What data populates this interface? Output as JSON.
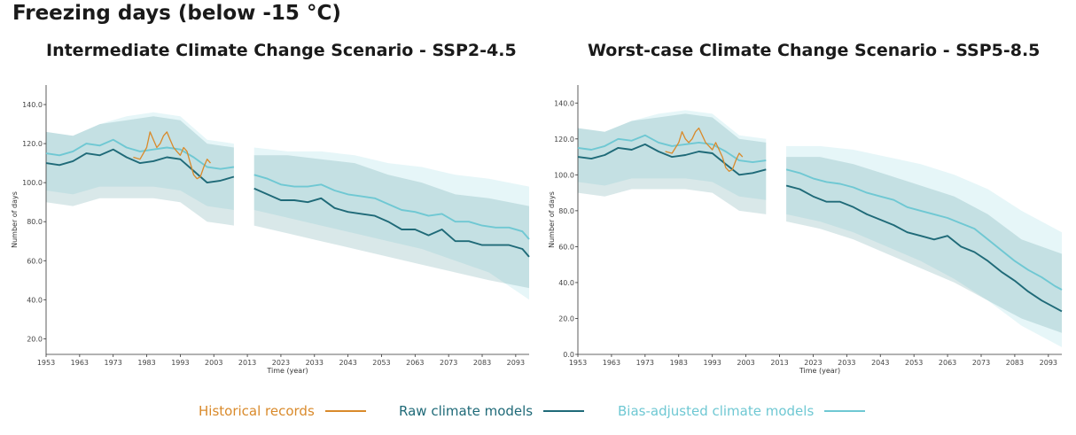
{
  "title": "Freezing days (below -15 °C)",
  "colors": {
    "historical": "#d98a2b",
    "raw": "#1f6a78",
    "bias": "#6fc8d3",
    "raw_band": "#2f7f86",
    "bias_band": "#8fd8e0"
  },
  "legend": {
    "historical": "Historical records",
    "raw": "Raw climate models",
    "bias": "Bias-adjusted climate models"
  },
  "chart_data": [
    {
      "type": "line",
      "title": "Intermediate Climate Change Scenario - SSP2-4.5",
      "xlabel": "Time (year)",
      "ylabel": "Number of days",
      "xlim": [
        1953,
        2097
      ],
      "ylim": [
        12,
        150
      ],
      "xticks": [
        "1953",
        "1963",
        "1973",
        "1983",
        "1993",
        "2003",
        "2013",
        "2023",
        "2033",
        "2043",
        "2053",
        "2063",
        "2073",
        "2083",
        "2093"
      ],
      "yticks": [
        "20.0",
        "40.0",
        "60.0",
        "80.0",
        "100.0",
        "120.0",
        "140.0"
      ],
      "series": [
        {
          "name": "Historical records",
          "segments": [
            {
              "x": [
                1979,
                1981,
                1983,
                1984,
                1985,
                1986,
                1987,
                1988,
                1989,
                1990,
                1991,
                1992,
                1993,
                1994,
                1995,
                1996,
                1997,
                1998,
                1999,
                2000,
                2001,
                2002
              ],
              "y": [
                113,
                112,
                118,
                126,
                122,
                118,
                120,
                124,
                126,
                122,
                118,
                116,
                114,
                118,
                116,
                110,
                104,
                102,
                103,
                108,
                112,
                110
              ]
            }
          ]
        },
        {
          "name": "Raw climate models",
          "segments": [
            {
              "x": [
                1953,
                1957,
                1961,
                1965,
                1969,
                1973,
                1977,
                1981,
                1985,
                1989,
                1993,
                1997,
                2001,
                2005,
                2009
              ],
              "y": [
                110,
                109,
                111,
                115,
                114,
                117,
                113,
                110,
                111,
                113,
                112,
                106,
                100,
                101,
                103
              ]
            },
            {
              "x": [
                2015,
                2019,
                2023,
                2027,
                2031,
                2035,
                2039,
                2043,
                2047,
                2051,
                2055,
                2059,
                2063,
                2067,
                2071,
                2075,
                2079,
                2083,
                2087,
                2091,
                2095,
                2097
              ],
              "y": [
                97,
                94,
                91,
                91,
                90,
                92,
                87,
                85,
                84,
                83,
                80,
                76,
                76,
                73,
                76,
                70,
                70,
                68,
                68,
                68,
                66,
                62
              ]
            }
          ]
        },
        {
          "name": "Bias-adjusted climate models",
          "segments": [
            {
              "x": [
                1953,
                1957,
                1961,
                1965,
                1969,
                1973,
                1977,
                1981,
                1985,
                1989,
                1993,
                1997,
                2001,
                2005,
                2009
              ],
              "y": [
                115,
                114,
                116,
                120,
                119,
                122,
                118,
                116,
                117,
                118,
                117,
                113,
                108,
                107,
                108
              ]
            },
            {
              "x": [
                2015,
                2019,
                2023,
                2027,
                2031,
                2035,
                2039,
                2043,
                2047,
                2051,
                2055,
                2059,
                2063,
                2067,
                2071,
                2075,
                2079,
                2083,
                2087,
                2091,
                2095,
                2097
              ],
              "y": [
                104,
                102,
                99,
                98,
                98,
                99,
                96,
                94,
                93,
                92,
                89,
                86,
                85,
                83,
                84,
                80,
                80,
                78,
                77,
                77,
                75,
                71
              ]
            }
          ]
        }
      ],
      "bands": [
        {
          "name": "Raw climate models range",
          "segments": [
            {
              "x": [
                1953,
                1961,
                1969,
                1977,
                1985,
                1993,
                2001,
                2009
              ],
              "low": [
                90,
                88,
                92,
                92,
                92,
                90,
                80,
                78
              ],
              "high": [
                126,
                124,
                130,
                132,
                134,
                132,
                120,
                118
              ]
            },
            {
              "x": [
                2015,
                2025,
                2035,
                2045,
                2055,
                2065,
                2075,
                2085,
                2097
              ],
              "low": [
                78,
                74,
                70,
                66,
                62,
                58,
                54,
                50,
                46
              ],
              "high": [
                114,
                114,
                112,
                110,
                104,
                100,
                94,
                92,
                88
              ]
            }
          ]
        },
        {
          "name": "Bias-adjusted climate models range",
          "segments": [
            {
              "x": [
                1953,
                1961,
                1969,
                1977,
                1985,
                1993,
                2001,
                2009
              ],
              "low": [
                96,
                94,
                98,
                98,
                98,
                96,
                88,
                86
              ],
              "high": [
                126,
                124,
                130,
                134,
                136,
                134,
                122,
                120
              ]
            },
            {
              "x": [
                2015,
                2025,
                2035,
                2045,
                2055,
                2065,
                2075,
                2085,
                2097
              ],
              "low": [
                86,
                82,
                78,
                74,
                70,
                66,
                60,
                54,
                40
              ],
              "high": [
                118,
                116,
                116,
                114,
                110,
                108,
                104,
                102,
                98
              ]
            }
          ]
        }
      ]
    },
    {
      "type": "line",
      "title": "Worst-case Climate Change Scenario - SSP5-8.5",
      "xlabel": "Time (year)",
      "ylabel": "Number of days",
      "xlim": [
        1953,
        2097
      ],
      "ylim": [
        0,
        150
      ],
      "xticks": [
        "1953",
        "1963",
        "1973",
        "1983",
        "1993",
        "2003",
        "2013",
        "2023",
        "2033",
        "2043",
        "2053",
        "2063",
        "2073",
        "2083",
        "2093"
      ],
      "yticks": [
        "0.0",
        "20.0",
        "40.0",
        "60.0",
        "80.0",
        "100.0",
        "120.0",
        "140.0"
      ],
      "series": [
        {
          "name": "Historical records",
          "segments": [
            {
              "x": [
                1979,
                1981,
                1983,
                1984,
                1985,
                1986,
                1987,
                1988,
                1989,
                1990,
                1991,
                1992,
                1993,
                1994,
                1995,
                1996,
                1997,
                1998,
                1999,
                2000,
                2001,
                2002
              ],
              "y": [
                113,
                112,
                118,
                124,
                120,
                118,
                120,
                124,
                126,
                122,
                118,
                116,
                114,
                118,
                114,
                110,
                104,
                102,
                103,
                108,
                112,
                110
              ]
            }
          ]
        },
        {
          "name": "Raw climate models",
          "segments": [
            {
              "x": [
                1953,
                1957,
                1961,
                1965,
                1969,
                1973,
                1977,
                1981,
                1985,
                1989,
                1993,
                1997,
                2001,
                2005,
                2009
              ],
              "y": [
                110,
                109,
                111,
                115,
                114,
                117,
                113,
                110,
                111,
                113,
                112,
                106,
                100,
                101,
                103
              ]
            },
            {
              "x": [
                2015,
                2019,
                2023,
                2027,
                2031,
                2035,
                2039,
                2043,
                2047,
                2051,
                2055,
                2059,
                2063,
                2067,
                2071,
                2075,
                2079,
                2083,
                2087,
                2091,
                2095,
                2097
              ],
              "y": [
                94,
                92,
                88,
                85,
                85,
                82,
                78,
                75,
                72,
                68,
                66,
                64,
                66,
                60,
                57,
                52,
                46,
                41,
                35,
                30,
                26,
                24
              ]
            }
          ]
        },
        {
          "name": "Bias-adjusted climate models",
          "segments": [
            {
              "x": [
                1953,
                1957,
                1961,
                1965,
                1969,
                1973,
                1977,
                1981,
                1985,
                1989,
                1993,
                1997,
                2001,
                2005,
                2009
              ],
              "y": [
                115,
                114,
                116,
                120,
                119,
                122,
                118,
                116,
                117,
                118,
                117,
                113,
                108,
                107,
                108
              ]
            },
            {
              "x": [
                2015,
                2019,
                2023,
                2027,
                2031,
                2035,
                2039,
                2043,
                2047,
                2051,
                2055,
                2059,
                2063,
                2067,
                2071,
                2075,
                2079,
                2083,
                2087,
                2091,
                2095,
                2097
              ],
              "y": [
                103,
                101,
                98,
                96,
                95,
                93,
                90,
                88,
                86,
                82,
                80,
                78,
                76,
                73,
                70,
                64,
                58,
                52,
                47,
                43,
                38,
                36
              ]
            }
          ]
        }
      ],
      "bands": [
        {
          "name": "Raw climate models range",
          "segments": [
            {
              "x": [
                1953,
                1961,
                1969,
                1977,
                1985,
                1993,
                2001,
                2009
              ],
              "low": [
                90,
                88,
                92,
                92,
                92,
                90,
                80,
                78
              ],
              "high": [
                126,
                124,
                130,
                132,
                134,
                132,
                120,
                118
              ]
            },
            {
              "x": [
                2015,
                2025,
                2035,
                2045,
                2055,
                2065,
                2075,
                2085,
                2097
              ],
              "low": [
                74,
                70,
                64,
                56,
                48,
                40,
                30,
                20,
                12
              ],
              "high": [
                110,
                110,
                106,
                100,
                94,
                88,
                78,
                64,
                56
              ]
            }
          ]
        },
        {
          "name": "Bias-adjusted climate models range",
          "segments": [
            {
              "x": [
                1953,
                1961,
                1969,
                1977,
                1985,
                1993,
                2001,
                2009
              ],
              "low": [
                96,
                94,
                98,
                98,
                98,
                96,
                88,
                86
              ],
              "high": [
                126,
                124,
                130,
                134,
                136,
                134,
                122,
                120
              ]
            },
            {
              "x": [
                2015,
                2025,
                2035,
                2045,
                2055,
                2065,
                2075,
                2085,
                2097
              ],
              "low": [
                78,
                74,
                68,
                60,
                52,
                42,
                30,
                16,
                4
              ],
              "high": [
                116,
                116,
                114,
                110,
                106,
                100,
                92,
                80,
                68
              ]
            }
          ]
        }
      ]
    }
  ]
}
